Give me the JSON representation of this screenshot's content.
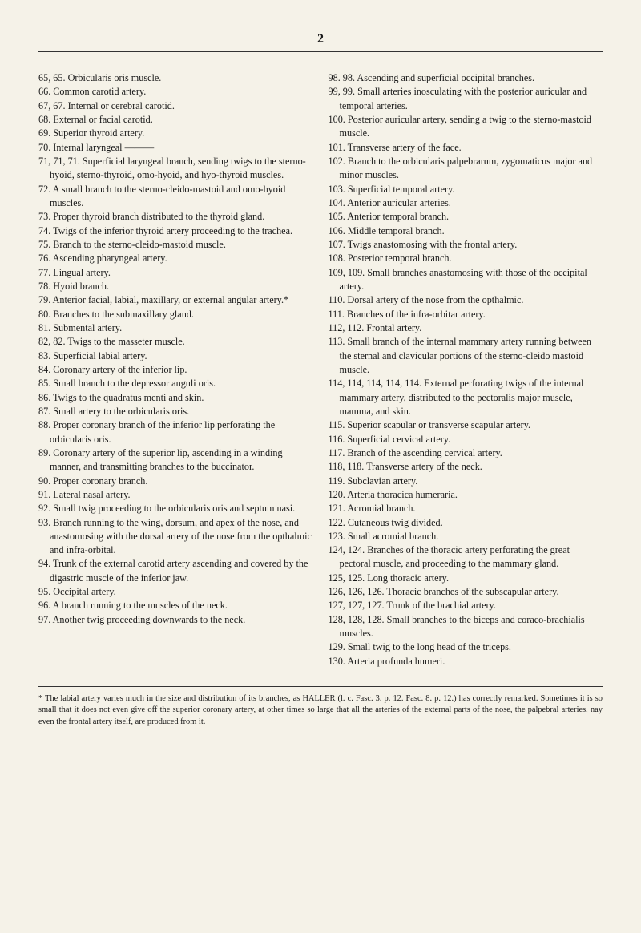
{
  "page_number": "2",
  "left_entries": [
    "65, 65. Orbicularis oris muscle.",
    "66. Common carotid artery.",
    "67, 67. Internal or cerebral carotid.",
    "68. External or facial carotid.",
    "69. Superior thyroid artery.",
    "70. Internal laryngeal ———",
    "71, 71, 71. Superficial laryngeal branch, sending twigs to the sterno-hyoid, sterno-thyroid, omo-hyoid, and hyo-thyroid muscles.",
    "72. A small branch to the sterno-cleido-mastoid and omo-hyoid muscles.",
    "73. Proper thyroid branch distributed to the thyroid gland.",
    "74. Twigs of the inferior thyroid artery proceeding to the trachea.",
    "75. Branch to the sterno-cleido-mastoid muscle.",
    "76. Ascending pharyngeal artery.",
    "77. Lingual artery.",
    "78. Hyoid branch.",
    "79. Anterior facial, labial, maxillary, or external angular artery.*",
    "80. Branches to the submaxillary gland.",
    "81. Submental artery.",
    "82, 82. Twigs to the masseter muscle.",
    "83. Superficial labial artery.",
    "84. Coronary artery of the inferior lip.",
    "85. Small branch to the depressor anguli oris.",
    "86. Twigs to the quadratus menti and skin.",
    "87. Small artery to the orbicularis oris.",
    "88. Proper coronary branch of the inferior lip perforating the orbicularis oris.",
    "89. Coronary artery of the superior lip, ascending in a winding manner, and transmitting branches to the buccinator.",
    "90. Proper coronary branch.",
    "91. Lateral nasal artery.",
    "92. Small twig proceeding to the orbicularis oris and septum nasi.",
    "93. Branch running to the wing, dorsum, and apex of the nose, and anastomosing with the dorsal artery of the nose from the opthalmic and infra-orbital.",
    "94. Trunk of the external carotid artery ascending and covered by the digastric muscle of the inferior jaw.",
    "95. Occipital artery.",
    "96. A branch running to the muscles of the neck.",
    "97. Another twig proceeding downwards to the neck."
  ],
  "right_entries": [
    "98. 98. Ascending and superficial occipital branches.",
    "99, 99. Small arteries inosculating with the posterior auricular and temporal arteries.",
    "100. Posterior auricular artery, sending a twig to the sterno-mastoid muscle.",
    "101. Transverse artery of the face.",
    "102. Branch to the orbicularis palpebrarum, zygomaticus major and minor muscles.",
    "103. Superficial temporal artery.",
    "104. Anterior auricular arteries.",
    "105. Anterior temporal branch.",
    "106. Middle temporal branch.",
    "107. Twigs anastomosing with the frontal artery.",
    "108. Posterior temporal branch.",
    "109, 109. Small branches anastomosing with those of the occipital artery.",
    "110. Dorsal artery of the nose from the opthalmic.",
    "111. Branches of the infra-orbitar artery.",
    "112, 112. Frontal artery.",
    "113. Small branch of the internal mammary artery running between the sternal and clavicular portions of the sterno-cleido mastoid muscle.",
    "114, 114, 114, 114, 114. External perforating twigs of the internal mammary artery, distributed to the pectoralis major muscle, mamma, and skin.",
    "115. Superior scapular or transverse scapular artery.",
    "116. Superficial cervical artery.",
    "117. Branch of the ascending cervical artery.",
    "118, 118. Transverse artery of the neck.",
    "119. Subclavian artery.",
    "120. Arteria thoracica humeraria.",
    "121. Acromial branch.",
    "122. Cutaneous twig divided.",
    "123. Small acromial branch.",
    "124, 124. Branches of the thoracic artery perforating the great pectoral muscle, and proceeding to the mammary gland.",
    "125, 125. Long thoracic artery.",
    "126, 126, 126. Thoracic branches of the subscapular artery.",
    "127, 127, 127. Trunk of the brachial artery.",
    "128, 128, 128. Small branches to the biceps and coraco-brachialis muscles.",
    "129. Small twig to the long head of the triceps.",
    "130. Arteria profunda humeri."
  ],
  "footnote": "* The labial artery varies much in the size and distribution of its branches, as HALLER (l. c. Fasc. 3. p. 12. Fasc. 8. p. 12.) has correctly remarked. Sometimes it is so small that it does not even give off the superior coronary artery, at other times so large that all the arteries of the external parts of the nose, the palpebral arteries, nay even the frontal artery itself, are produced from it."
}
